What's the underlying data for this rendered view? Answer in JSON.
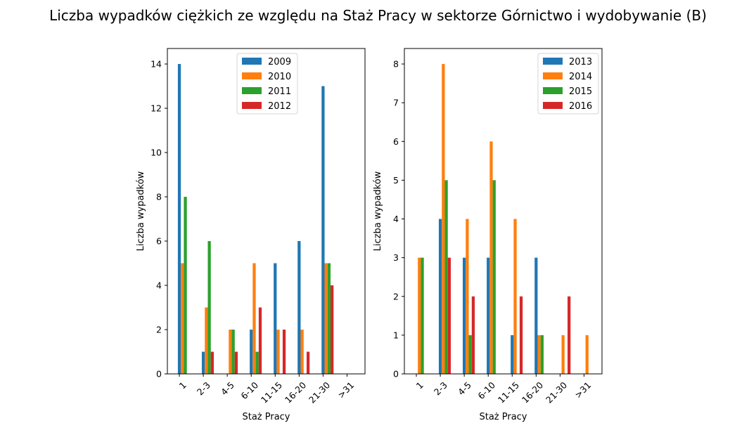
{
  "figure": {
    "title": "Liczba wypadków ciężkich ze względu na Staż Pracy w sektorze Górnictwo i wydobywanie (B)"
  },
  "colors": {
    "c1": "#1f77b4",
    "c2": "#ff7f0e",
    "c3": "#2ca02c",
    "c4": "#d62728"
  },
  "chart_data": [
    {
      "type": "bar",
      "title": "",
      "xlabel": "Staż Pracy",
      "ylabel": "Liczba wypadków",
      "categories": [
        "1",
        "2-3",
        "4-5",
        "6-10",
        "11-15",
        "16-20",
        "21-30",
        ">31"
      ],
      "ylim": [
        0,
        14.7
      ],
      "yticks": [
        0,
        2,
        4,
        6,
        8,
        10,
        12,
        14
      ],
      "legend": "upper center",
      "grid": false,
      "series": [
        {
          "name": "2009",
          "values": [
            14,
            1,
            0,
            2,
            5,
            6,
            13,
            0
          ]
        },
        {
          "name": "2010",
          "values": [
            5,
            3,
            2,
            5,
            2,
            2,
            5,
            0
          ]
        },
        {
          "name": "2011",
          "values": [
            8,
            6,
            2,
            1,
            0,
            0,
            5,
            0
          ]
        },
        {
          "name": "2012",
          "values": [
            0,
            1,
            1,
            3,
            2,
            1,
            4,
            0
          ]
        }
      ]
    },
    {
      "type": "bar",
      "title": "",
      "xlabel": "Staż Pracy",
      "ylabel": "Liczba wypadków",
      "categories": [
        "1",
        "2-3",
        "4-5",
        "6-10",
        "11-15",
        "16-20",
        "21-30",
        ">31"
      ],
      "ylim": [
        0,
        8.4
      ],
      "yticks": [
        0,
        1,
        2,
        3,
        4,
        5,
        6,
        7,
        8
      ],
      "legend": "upper right",
      "grid": false,
      "series": [
        {
          "name": "2013",
          "values": [
            0,
            4,
            3,
            3,
            1,
            3,
            0,
            0
          ]
        },
        {
          "name": "2014",
          "values": [
            3,
            8,
            4,
            6,
            4,
            1,
            1,
            1
          ]
        },
        {
          "name": "2015",
          "values": [
            3,
            5,
            1,
            5,
            0,
            1,
            0,
            0
          ]
        },
        {
          "name": "2016",
          "values": [
            0,
            3,
            2,
            0,
            2,
            0,
            2,
            0
          ]
        }
      ]
    }
  ]
}
